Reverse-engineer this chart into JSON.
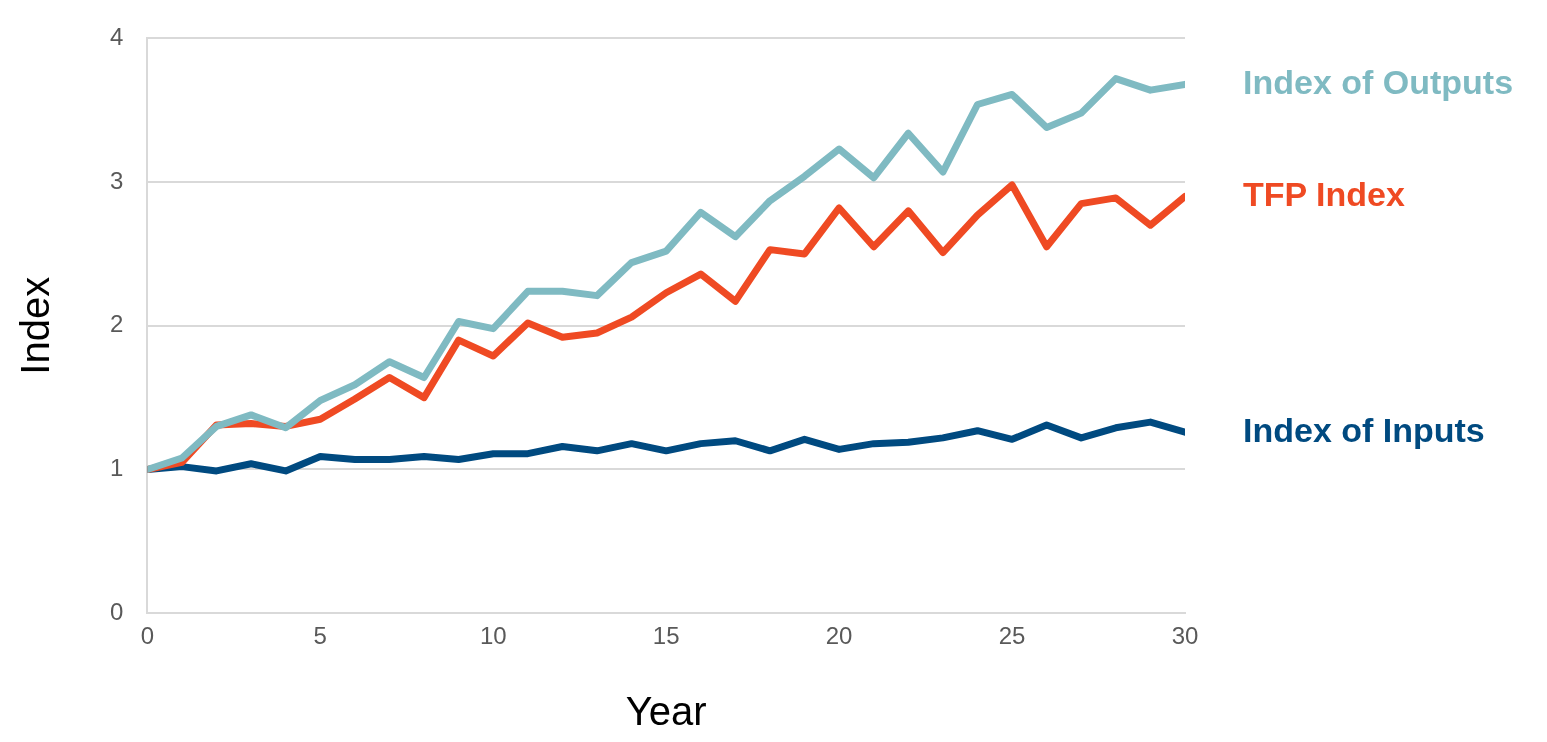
{
  "chart_data": {
    "type": "line",
    "xlabel": "Year",
    "ylabel": "Index",
    "x": [
      0,
      1,
      2,
      3,
      4,
      5,
      6,
      7,
      8,
      9,
      10,
      11,
      12,
      13,
      14,
      15,
      16,
      17,
      18,
      19,
      20,
      21,
      22,
      23,
      24,
      25,
      26,
      27,
      28,
      29,
      30
    ],
    "series": [
      {
        "name": "Index of Outputs",
        "color": "#7fbac2",
        "values": [
          1.0,
          1.08,
          1.3,
          1.38,
          1.29,
          1.48,
          1.59,
          1.75,
          1.64,
          2.03,
          1.98,
          2.24,
          2.24,
          2.21,
          2.44,
          2.52,
          2.79,
          2.62,
          2.87,
          3.04,
          3.23,
          3.03,
          3.34,
          3.07,
          3.54,
          3.61,
          3.38,
          3.48,
          3.72,
          3.64,
          3.68
        ]
      },
      {
        "name": "TFP Index",
        "color": "#ef4a23",
        "values": [
          1.0,
          1.05,
          1.31,
          1.32,
          1.3,
          1.35,
          1.49,
          1.64,
          1.5,
          1.9,
          1.79,
          2.02,
          1.92,
          1.95,
          2.06,
          2.23,
          2.36,
          2.17,
          2.53,
          2.5,
          2.82,
          2.55,
          2.8,
          2.51,
          2.77,
          2.98,
          2.55,
          2.85,
          2.89,
          2.7,
          2.9
        ]
      },
      {
        "name": "Index of Inputs",
        "color": "#004a80",
        "values": [
          1.0,
          1.02,
          0.99,
          1.04,
          0.99,
          1.09,
          1.07,
          1.07,
          1.09,
          1.07,
          1.11,
          1.11,
          1.16,
          1.13,
          1.18,
          1.13,
          1.18,
          1.2,
          1.13,
          1.21,
          1.14,
          1.18,
          1.19,
          1.22,
          1.27,
          1.21,
          1.31,
          1.22,
          1.29,
          1.33,
          1.26
        ]
      }
    ],
    "xlim": [
      0,
      30
    ],
    "xticks": [
      0,
      5,
      10,
      15,
      20,
      25,
      30
    ],
    "ylim": [
      0,
      4
    ],
    "yticks": [
      0,
      1,
      2,
      3,
      4
    ],
    "grid": "y",
    "legend": false,
    "marker": "none",
    "line_style": "solid"
  }
}
